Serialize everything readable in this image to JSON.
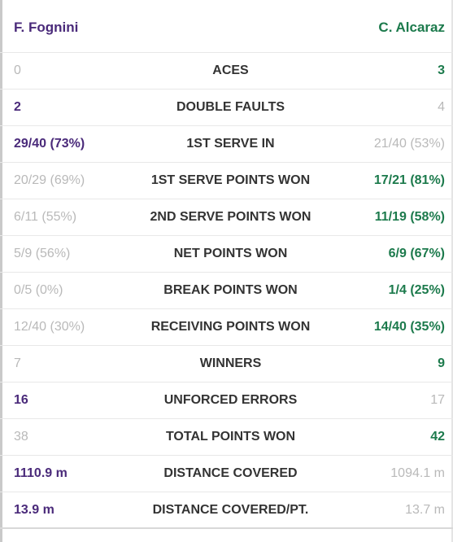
{
  "players": {
    "left": "F. Fognini",
    "right": "C. Alcaraz"
  },
  "stats": [
    {
      "label": "ACES",
      "left": "0",
      "right": "3",
      "winner": "right"
    },
    {
      "label": "DOUBLE FAULTS",
      "left": "2",
      "right": "4",
      "winner": "left"
    },
    {
      "label": "1ST SERVE IN",
      "left": "29/40 (73%)",
      "right": "21/40 (53%)",
      "winner": "left"
    },
    {
      "label": "1ST SERVE POINTS WON",
      "left": "20/29 (69%)",
      "right": "17/21 (81%)",
      "winner": "right"
    },
    {
      "label": "2ND SERVE POINTS WON",
      "left": "6/11 (55%)",
      "right": "11/19 (58%)",
      "winner": "right"
    },
    {
      "label": "NET POINTS WON",
      "left": "5/9 (56%)",
      "right": "6/9 (67%)",
      "winner": "right"
    },
    {
      "label": "BREAK POINTS WON",
      "left": "0/5 (0%)",
      "right": "1/4 (25%)",
      "winner": "right"
    },
    {
      "label": "RECEIVING POINTS WON",
      "left": "12/40 (30%)",
      "right": "14/40 (35%)",
      "winner": "right"
    },
    {
      "label": "WINNERS",
      "left": "7",
      "right": "9",
      "winner": "right"
    },
    {
      "label": "UNFORCED ERRORS",
      "left": "16",
      "right": "17",
      "winner": "left"
    },
    {
      "label": "TOTAL POINTS WON",
      "left": "38",
      "right": "42",
      "winner": "right"
    },
    {
      "label": "DISTANCE COVERED",
      "left": "1110.9 m",
      "right": "1094.1 m",
      "winner": "left"
    },
    {
      "label": "DISTANCE COVERED/PT.",
      "left": "13.9 m",
      "right": "13.7 m",
      "winner": "left"
    }
  ],
  "colors": {
    "left_player": "#4a2a7a",
    "right_player": "#1c7a4c",
    "muted": "#b9b9b9",
    "label": "#333333"
  }
}
